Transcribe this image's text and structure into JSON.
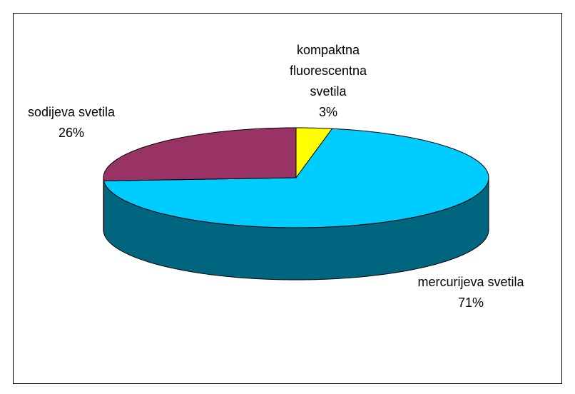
{
  "chart_data": {
    "type": "pie",
    "categories": [
      "kompaktna fluorescentna svetila",
      "mercurijeva svetila",
      "sodijeva svetila"
    ],
    "values": [
      3,
      71,
      26
    ],
    "value_labels": [
      "3%",
      "71%",
      "26%"
    ],
    "colors": [
      "#ffff00",
      "#00ccff",
      "#993366"
    ],
    "side_colors": [
      "#808000",
      "#006680",
      "#4d1a33"
    ]
  }
}
